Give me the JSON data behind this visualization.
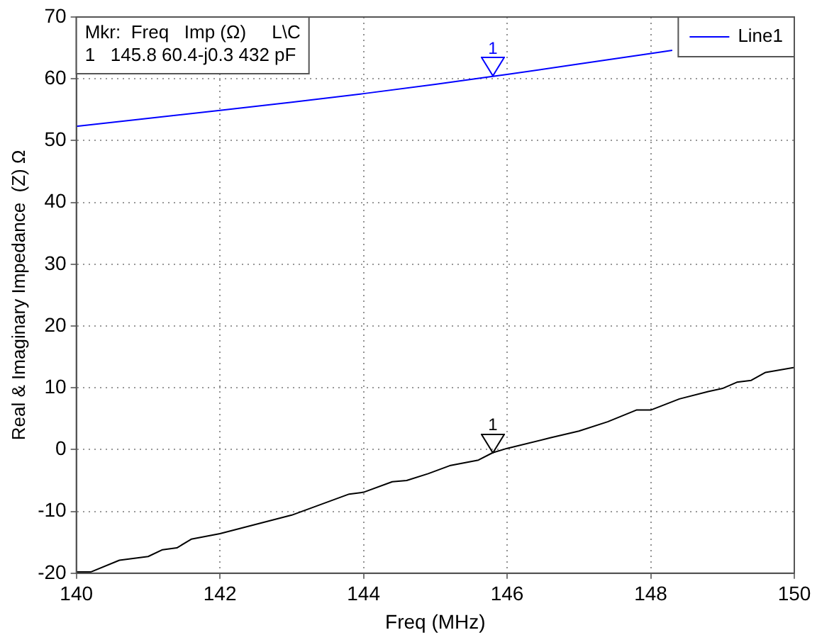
{
  "chart_data": {
    "type": "line",
    "xlabel": "Freq (MHz)",
    "ylabel": "Real & Imaginary Impedance  (Z) Ω",
    "xlim": [
      140,
      150
    ],
    "xticks": [
      140,
      142,
      144,
      146,
      148,
      150
    ],
    "ylim": [
      -20,
      70
    ],
    "yticks": [
      -20,
      -10,
      0,
      10,
      20,
      30,
      40,
      50,
      60,
      70
    ],
    "grid": true,
    "legend": "top right",
    "marker": "none",
    "line_style": "solid",
    "series": [
      {
        "name": "Line1",
        "color": "#0000ff",
        "x": [
          140,
          141,
          142,
          143,
          144,
          145,
          145.8,
          146,
          147,
          148,
          148.3
        ],
        "values": [
          52.3,
          53.6,
          54.9,
          56.2,
          57.6,
          59.1,
          60.4,
          60.7,
          62.4,
          64.1,
          64.6
        ]
      },
      {
        "color": "#000000",
        "x": [
          140,
          140.2,
          140.6,
          141,
          141.2,
          141.4,
          141.6,
          142,
          143,
          143.8,
          144,
          144.4,
          144.6,
          144.9,
          145.2,
          145.6,
          145.8,
          146,
          146.6,
          147,
          147.4,
          147.8,
          148,
          148.4,
          148.8,
          149,
          149.2,
          149.4,
          149.6,
          150
        ],
        "values": [
          -19.8,
          -19.8,
          -17.9,
          -17.3,
          -16.2,
          -15.9,
          -14.5,
          -13.6,
          -10.6,
          -7.2,
          -6.9,
          -5.2,
          -5,
          -3.9,
          -2.6,
          -1.7,
          -0.5,
          0.2,
          1.9,
          3,
          4.5,
          6.4,
          6.4,
          8.2,
          9.4,
          9.9,
          10.9,
          11.2,
          12.5,
          13.3
        ]
      }
    ],
    "annotations": [
      "Mkr:  Freq   Imp (Ω)     L\\C",
      "1   145.8 60.4-j0.3 432 pF",
      {
        "text": "1",
        "x": 145.8,
        "y": 60.4
      },
      {
        "text": "1",
        "x": 145.8,
        "y": -0.5
      }
    ]
  }
}
